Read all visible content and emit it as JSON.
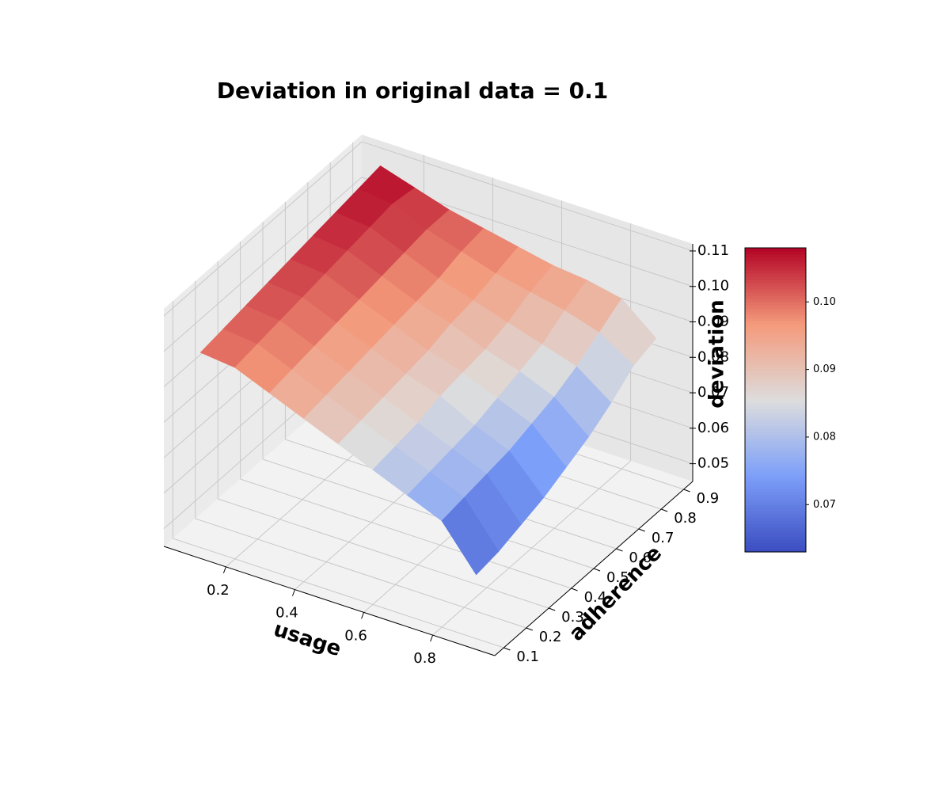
{
  "chart_data": {
    "type": "surface3d",
    "title": "Deviation in original data = 0.1",
    "xlabel": "usage",
    "ylabel": "adherence",
    "zlabel": "deviation",
    "x": [
      0.1,
      0.2,
      0.3,
      0.4,
      0.5,
      0.6,
      0.7,
      0.8,
      0.9
    ],
    "y": [
      0.1,
      0.2,
      0.3,
      0.4,
      0.5,
      0.6,
      0.7,
      0.8,
      0.9
    ],
    "z": [
      [
        0.1,
        0.101,
        0.102,
        0.103,
        0.104,
        0.105,
        0.106,
        0.107,
        0.108
      ],
      [
        0.099,
        0.1,
        0.101,
        0.102,
        0.103,
        0.104,
        0.105,
        0.106,
        0.105
      ],
      [
        0.095,
        0.096,
        0.097,
        0.098,
        0.099,
        0.1,
        0.101,
        0.102,
        0.102
      ],
      [
        0.091,
        0.092,
        0.093,
        0.094,
        0.095,
        0.096,
        0.097,
        0.099,
        0.1
      ],
      [
        0.087,
        0.088,
        0.089,
        0.09,
        0.091,
        0.093,
        0.094,
        0.096,
        0.098
      ],
      [
        0.083,
        0.084,
        0.085,
        0.087,
        0.088,
        0.089,
        0.091,
        0.094,
        0.096
      ],
      [
        0.079,
        0.08,
        0.081,
        0.082,
        0.084,
        0.086,
        0.088,
        0.092,
        0.095
      ],
      [
        0.075,
        0.076,
        0.077,
        0.078,
        0.08,
        0.082,
        0.085,
        0.089,
        0.093
      ],
      [
        0.063,
        0.064,
        0.066,
        0.068,
        0.071,
        0.074,
        0.078,
        0.083,
        0.085
      ]
    ],
    "colormap": "coolwarm",
    "xlim": [
      0.02,
      0.98
    ],
    "ylim": [
      0.06,
      0.94
    ],
    "zlim": [
      0.045,
      0.112
    ],
    "xticks": [
      0.2,
      0.4,
      0.6,
      0.8
    ],
    "yticks": [
      0.1,
      0.2,
      0.3,
      0.4,
      0.5,
      0.6,
      0.7,
      0.8,
      0.9
    ],
    "zticks": [
      0.05,
      0.06,
      0.07,
      0.08,
      0.09,
      {
        "value": 0.1,
        "label": "0.10"
      },
      0.11
    ],
    "clim": [
      0.063,
      0.108
    ],
    "cticks": [
      0.07,
      0.08,
      0.09,
      {
        "value": 0.1,
        "label": "0.10"
      }
    ],
    "grid": true
  }
}
